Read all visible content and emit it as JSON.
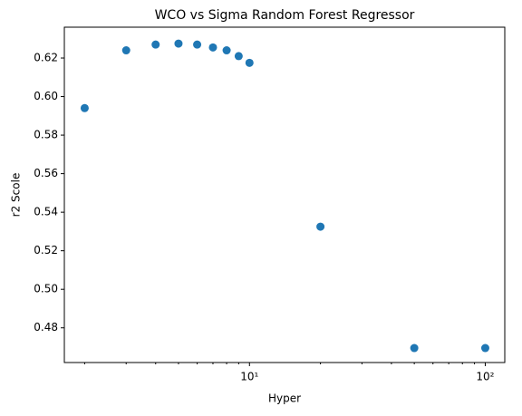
{
  "chart_data": {
    "type": "scatter",
    "title": "WCO vs Sigma Random Forest Regressor",
    "xlabel": "Hyper",
    "ylabel": "r2 Scole",
    "x": [
      2,
      3,
      4,
      5,
      6,
      7,
      8,
      9,
      10,
      20,
      50,
      100
    ],
    "series": [
      {
        "color": "#1f77b4",
        "values": [
          0.594,
          0.624,
          0.627,
          0.6275,
          0.627,
          0.6255,
          0.624,
          0.621,
          0.6175,
          0.5325,
          0.4695,
          0.4695
        ]
      }
    ],
    "xscale": "log",
    "xlim": [
      1.64,
      121
    ],
    "xticks": [
      {
        "value": 10,
        "label": "10¹"
      },
      {
        "value": 100,
        "label": "10²"
      }
    ],
    "xminor_ticks": [
      2,
      3,
      4,
      5,
      6,
      7,
      8,
      9,
      20,
      30,
      40,
      50,
      60,
      70,
      80,
      90
    ],
    "ylim": [
      0.462,
      0.636
    ],
    "yticks": [
      {
        "value": 0.48,
        "label": "0.48"
      },
      {
        "value": 0.5,
        "label": "0.50"
      },
      {
        "value": 0.52,
        "label": "0.52"
      },
      {
        "value": 0.54,
        "label": "0.54"
      },
      {
        "value": 0.56,
        "label": "0.56"
      },
      {
        "value": 0.58,
        "label": "0.58"
      },
      {
        "value": 0.6,
        "label": "0.60"
      },
      {
        "value": 0.62,
        "label": "0.62"
      }
    ],
    "grid": false
  }
}
